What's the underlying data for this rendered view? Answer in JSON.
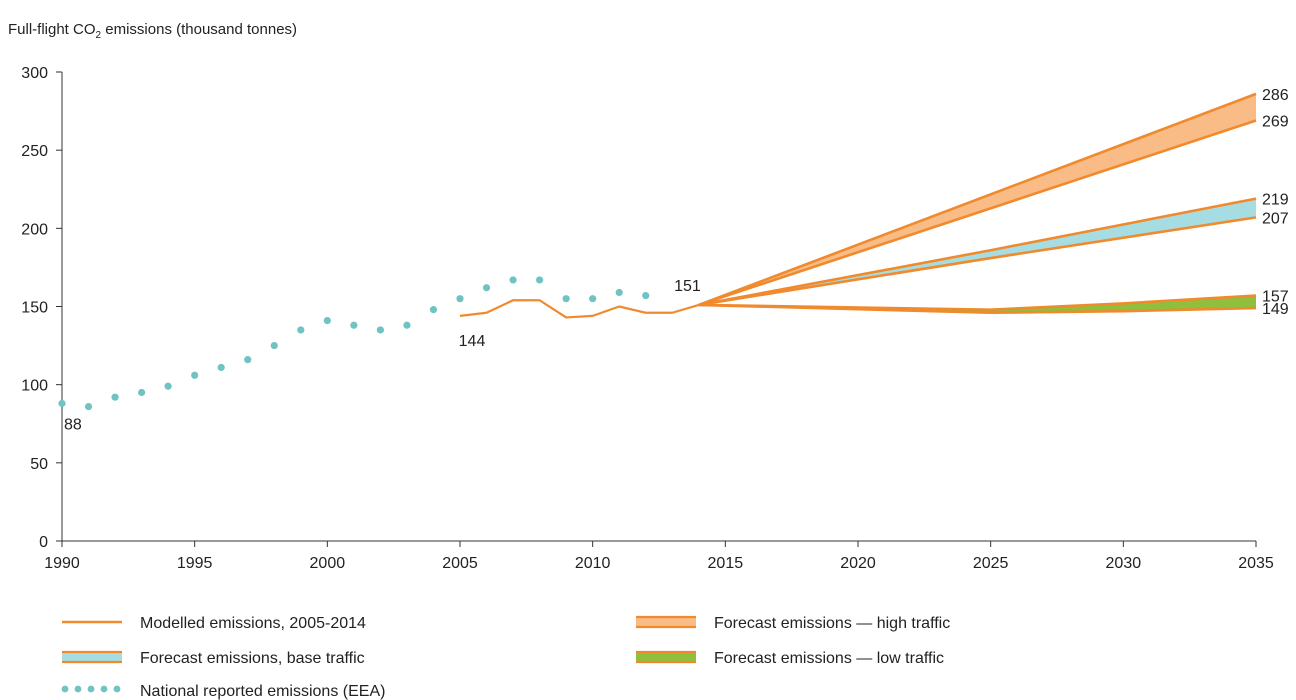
{
  "chart_data": {
    "type": "line",
    "title": "Full-flight CO",
    "title_sub": "2",
    "title_rest": " emissions (thousand tonnes)",
    "xlim": [
      1990,
      2035
    ],
    "ylim": [
      0,
      300
    ],
    "x_ticks": [
      1990,
      1995,
      2000,
      2005,
      2010,
      2015,
      2020,
      2025,
      2030,
      2035
    ],
    "y_ticks": [
      0,
      50,
      100,
      150,
      200,
      250,
      300
    ],
    "grid": false,
    "colors": {
      "orange": "#f08a2c",
      "orange_fill": "#f9bc86",
      "blue_fill": "#a6dde3",
      "green_fill": "#8fbf3c",
      "teal": "#6fc3c3",
      "axis": "#333333"
    },
    "series": [
      {
        "name": "National reported emissions (EEA)",
        "style": "dots",
        "points": [
          [
            1990,
            88
          ],
          [
            1991,
            86
          ],
          [
            1992,
            92
          ],
          [
            1993,
            95
          ],
          [
            1994,
            99
          ],
          [
            1995,
            106
          ],
          [
            1996,
            111
          ],
          [
            1997,
            116
          ],
          [
            1998,
            125
          ],
          [
            1999,
            135
          ],
          [
            2000,
            141
          ],
          [
            2001,
            138
          ],
          [
            2002,
            135
          ],
          [
            2003,
            138
          ],
          [
            2004,
            148
          ],
          [
            2005,
            155
          ],
          [
            2006,
            162
          ],
          [
            2007,
            167
          ],
          [
            2008,
            167
          ],
          [
            2009,
            155
          ],
          [
            2010,
            155
          ],
          [
            2011,
            159
          ],
          [
            2012,
            157
          ]
        ]
      },
      {
        "name": "Modelled emissions, 2005-2014",
        "style": "line",
        "points": [
          [
            2005,
            144
          ],
          [
            2006,
            146
          ],
          [
            2007,
            154
          ],
          [
            2008,
            154
          ],
          [
            2009,
            143
          ],
          [
            2010,
            144
          ],
          [
            2011,
            150
          ],
          [
            2012,
            146
          ],
          [
            2013,
            146
          ],
          [
            2014,
            151
          ]
        ]
      },
      {
        "name": "Forecast emissions — high traffic",
        "style": "band",
        "fill": "orange_fill",
        "upper": [
          [
            2014,
            151
          ],
          [
            2035,
            286
          ]
        ],
        "lower": [
          [
            2014,
            151
          ],
          [
            2035,
            269
          ]
        ]
      },
      {
        "name": "Forecast emissions, base traffic",
        "style": "band",
        "fill": "blue_fill",
        "upper": [
          [
            2014,
            151
          ],
          [
            2025,
            186
          ],
          [
            2035,
            219
          ]
        ],
        "lower": [
          [
            2014,
            151
          ],
          [
            2025,
            181
          ],
          [
            2035,
            207
          ]
        ]
      },
      {
        "name": "Forecast emissions — low traffic",
        "style": "band",
        "fill": "green_fill",
        "upper": [
          [
            2014,
            151
          ],
          [
            2025,
            148
          ],
          [
            2030,
            152
          ],
          [
            2035,
            157
          ]
        ],
        "lower": [
          [
            2014,
            151
          ],
          [
            2025,
            146
          ],
          [
            2030,
            147
          ],
          [
            2035,
            149
          ]
        ]
      }
    ],
    "annotations": [
      {
        "text": "88",
        "x": 1990,
        "y": 88,
        "anchor": "below-right"
      },
      {
        "text": "144",
        "x": 2005,
        "y": 144,
        "anchor": "below"
      },
      {
        "text": "151",
        "x": 2014,
        "y": 151,
        "anchor": "above-left"
      },
      {
        "text": "286",
        "x": 2035,
        "y": 286,
        "anchor": "right"
      },
      {
        "text": "269",
        "x": 2035,
        "y": 269,
        "anchor": "right"
      },
      {
        "text": "219",
        "x": 2035,
        "y": 219,
        "anchor": "right"
      },
      {
        "text": "207",
        "x": 2035,
        "y": 207,
        "anchor": "right"
      },
      {
        "text": "157",
        "x": 2035,
        "y": 157,
        "anchor": "right"
      },
      {
        "text": "149",
        "x": 2035,
        "y": 149,
        "anchor": "right"
      }
    ],
    "legend": {
      "placement": "bottom",
      "items": [
        {
          "label": "Modelled emissions, 2005-2014",
          "swatch": "line"
        },
        {
          "label": "Forecast emissions — high traffic",
          "swatch": "band-orange"
        },
        {
          "label": "Forecast emissions, base traffic",
          "swatch": "band-blue"
        },
        {
          "label": "Forecast emissions — low traffic",
          "swatch": "band-green"
        },
        {
          "label": "National reported emissions (EEA)",
          "swatch": "dots"
        }
      ]
    }
  }
}
